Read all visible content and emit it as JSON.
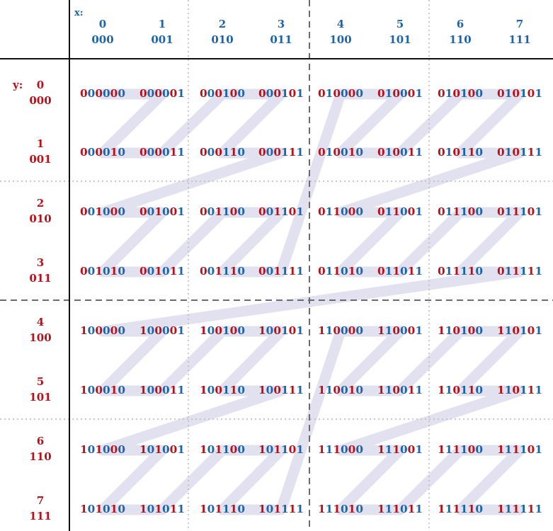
{
  "colors": {
    "x_color": "#1f63a8",
    "y_color": "#b5121b",
    "curve_color": "#e2e1ef",
    "axis_line": "#111111",
    "dashed_major": "#6b6b6b",
    "dotted_minor": "#b9b9b9"
  },
  "axis_x_tag": "x:",
  "axis_y_tag": "y:",
  "columns": [
    {
      "dec": "0",
      "bin": "000"
    },
    {
      "dec": "1",
      "bin": "001"
    },
    {
      "dec": "2",
      "bin": "010"
    },
    {
      "dec": "3",
      "bin": "011"
    },
    {
      "dec": "4",
      "bin": "100"
    },
    {
      "dec": "5",
      "bin": "101"
    },
    {
      "dec": "6",
      "bin": "110"
    },
    {
      "dec": "7",
      "bin": "111"
    }
  ],
  "rows": [
    {
      "dec": "0",
      "bin": "000"
    },
    {
      "dec": "1",
      "bin": "001"
    },
    {
      "dec": "2",
      "bin": "010"
    },
    {
      "dec": "3",
      "bin": "011"
    },
    {
      "dec": "4",
      "bin": "100"
    },
    {
      "dec": "5",
      "bin": "101"
    },
    {
      "dec": "6",
      "bin": "110"
    },
    {
      "dec": "7",
      "bin": "111"
    }
  ],
  "cells": [
    [
      "000000",
      "000001",
      "000100",
      "000101",
      "010000",
      "010001",
      "010100",
      "010101"
    ],
    [
      "000010",
      "000011",
      "000110",
      "000111",
      "010010",
      "010011",
      "010110",
      "010111"
    ],
    [
      "001000",
      "001001",
      "001100",
      "001101",
      "011000",
      "011001",
      "011100",
      "011101"
    ],
    [
      "001010",
      "001011",
      "001110",
      "001111",
      "011010",
      "011011",
      "011110",
      "011111"
    ],
    [
      "100000",
      "100001",
      "100100",
      "100101",
      "110000",
      "110001",
      "110100",
      "110101"
    ],
    [
      "100010",
      "100011",
      "100110",
      "100111",
      "110010",
      "110011",
      "110110",
      "110111"
    ],
    [
      "101000",
      "101001",
      "101100",
      "101101",
      "111000",
      "111001",
      "111100",
      "111101"
    ],
    [
      "101010",
      "101011",
      "101110",
      "101111",
      "111010",
      "111011",
      "111110",
      "111111"
    ]
  ]
}
